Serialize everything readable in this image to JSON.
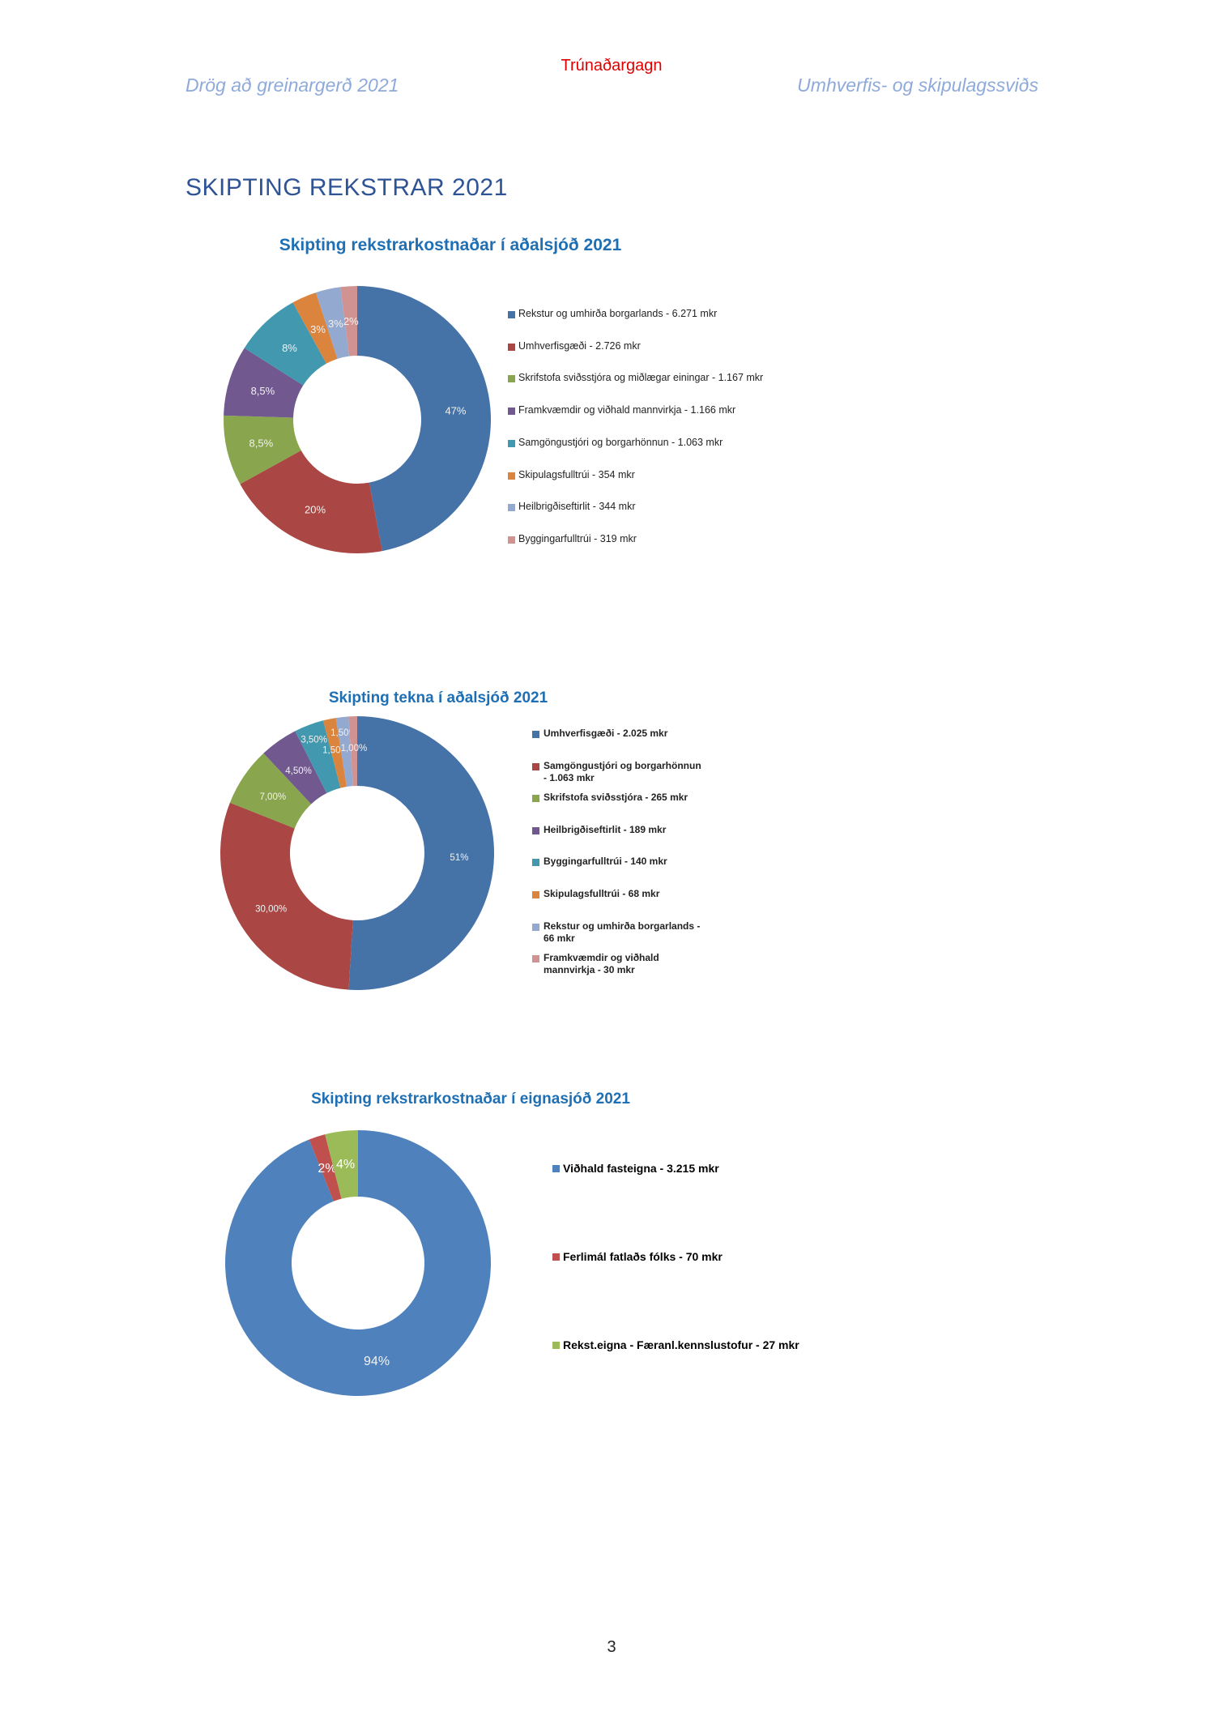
{
  "header": {
    "confidential": "Trúnaðargagn",
    "left": "Drög að greinargerð 2021",
    "right": "Umhverfis- og skipulagssviðs"
  },
  "heading": "SKIPTING REKSTRAR 2021",
  "page_number": "3",
  "chart_data": [
    {
      "type": "pie",
      "title": "Skipting rekstrarkostnaðar í aðalsjóð 2021",
      "categories": [
        "Rekstur og umhirða borgarlands - 6.271 mkr",
        "Umhverfisgæði - 2.726 mkr",
        "Skrifstofa sviðsstjóra og miðlægar einingar - 1.167 mkr",
        "Framkvæmdir og viðhald mannvirkja - 1.166 mkr",
        "Samgöngustjóri og borgarhönnun - 1.063 mkr",
        "Skipulagsfulltrúi - 354 mkr",
        "Heilbrigðiseftirlit - 344 mkr",
        "Byggingarfulltrúi - 319 mkr"
      ],
      "values": [
        47,
        20,
        8.5,
        8.5,
        8,
        3,
        3,
        2
      ],
      "mkr": [
        6271,
        2726,
        1167,
        1166,
        1063,
        354,
        344,
        319
      ],
      "labels": [
        "47%",
        "20%",
        "8,5%",
        "8,5%",
        "8%",
        "3%",
        "3%",
        "2%"
      ],
      "colors": [
        "#4572A7",
        "#AA4643",
        "#89A54E",
        "#71588F",
        "#4198AF",
        "#DB843D",
        "#93A9CF",
        "#D19392"
      ],
      "legend": "right"
    },
    {
      "type": "pie",
      "title": "Skipting tekna í aðalsjóð 2021",
      "categories": [
        "Umhverfisgæði - 2.025 mkr",
        "Samgöngustjóri og borgarhönnun - 1.063 mkr",
        "Skrifstofa sviðsstjóra - 265 mkr",
        "Heilbrigðiseftirlit - 189 mkr",
        "Byggingarfulltrúi - 140 mkr",
        "Skipulagsfulltrúi - 68 mkr",
        "Rekstur og umhirða borgarlands - 66 mkr",
        "Framkvæmdir og viðhald mannvirkja - 30 mkr"
      ],
      "values": [
        51,
        30,
        7,
        4.5,
        3.5,
        1.5,
        1.5,
        1
      ],
      "mkr": [
        2025,
        1063,
        265,
        189,
        140,
        68,
        66,
        30
      ],
      "labels": [
        "51%",
        "30,00%",
        "7,00%",
        "4,50%",
        "3,50%",
        "1,50%",
        "1,50%",
        "1,00%"
      ],
      "colors": [
        "#4572A7",
        "#AA4643",
        "#89A54E",
        "#71588F",
        "#4198AF",
        "#DB843D",
        "#93A9CF",
        "#D19392"
      ],
      "legend": "right"
    },
    {
      "type": "pie",
      "title": "Skipting rekstrarkostnaðar í eignasjóð 2021",
      "categories": [
        "Viðhald fasteigna - 3.215 mkr",
        "Ferlimál fatlaðs fólks - 70 mkr",
        "Rekst.eigna - Færanl.kennslustofur - 27 mkr"
      ],
      "values": [
        94,
        2,
        4
      ],
      "mkr": [
        3215,
        70,
        27
      ],
      "labels": [
        "94%",
        "2%",
        "4%"
      ],
      "colors": [
        "#4F81BD",
        "#C0504D",
        "#9BBB59"
      ],
      "legend": "right"
    }
  ]
}
